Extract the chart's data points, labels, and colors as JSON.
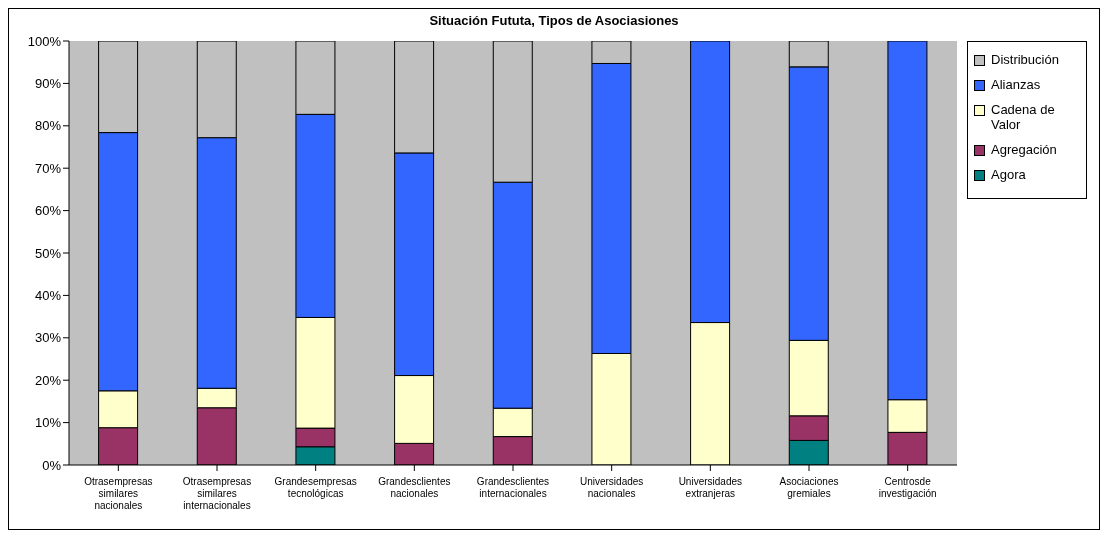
{
  "chart_data": {
    "type": "bar",
    "title": "Situación Fututa, Tipos de Asociasiones",
    "stacked": true,
    "legend": "right",
    "grid": false,
    "categories": [
      "Otrasempresas similares nacionales",
      "Otrasempresas similares internacionales",
      "Grandesempresas tecnológicas",
      "Grandesclientes nacionales",
      "Grandesclientes internacionales",
      "Universidades nacionales",
      "Universidades extranjeras",
      "Asociaciones gremiales",
      "Centrosde investigación"
    ],
    "series": [
      {
        "name": "Agora",
        "color": "#008080",
        "values": [
          0,
          0,
          4.3,
          0,
          0,
          0,
          0,
          5.8,
          0
        ]
      },
      {
        "name": "Agregación",
        "color": "#993366",
        "values": [
          8.8,
          13.5,
          4.4,
          5.1,
          6.7,
          0,
          0,
          5.8,
          7.7
        ]
      },
      {
        "name": "Cadena de Valor",
        "color": "#ffffcc",
        "values": [
          8.7,
          4.6,
          26.1,
          16.0,
          6.7,
          26.3,
          33.6,
          17.8,
          7.7
        ]
      },
      {
        "name": "Alianzas",
        "color": "#3366ff",
        "values": [
          60.9,
          59.1,
          47.9,
          52.5,
          53.3,
          68.4,
          66.4,
          64.5,
          84.6
        ]
      },
      {
        "name": "Distribución",
        "color": "#c0c0c0",
        "values": [
          21.6,
          22.8,
          17.3,
          26.4,
          33.3,
          5.3,
          0,
          6.1,
          0
        ]
      }
    ],
    "ylim": [
      0,
      100
    ],
    "yticks": [
      {
        "value": 0,
        "label": "0%"
      },
      {
        "value": 10,
        "label": "10%"
      },
      {
        "value": 20,
        "label": "20%"
      },
      {
        "value": 30,
        "label": "30%"
      },
      {
        "value": 40,
        "label": "40%"
      },
      {
        "value": 50,
        "label": "50%"
      },
      {
        "value": 60,
        "label": "60%"
      },
      {
        "value": 70,
        "label": "70%"
      },
      {
        "value": 80,
        "label": "80%"
      },
      {
        "value": 90,
        "label": "90%"
      },
      {
        "value": 100,
        "label": "100%"
      }
    ]
  }
}
